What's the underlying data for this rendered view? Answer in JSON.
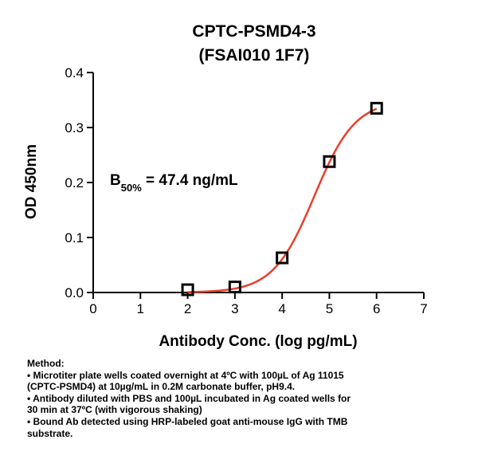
{
  "chart_data": {
    "type": "scatter",
    "title": [
      "CPTC-PSMD4-3",
      "(FSAI010 1F7)"
    ],
    "xlabel": "Antibody Conc. (log pg/mL)",
    "ylabel": "OD 450nm",
    "xlim": [
      0,
      7
    ],
    "ylim": [
      0,
      0.4
    ],
    "xticks": [
      0,
      1,
      2,
      3,
      4,
      5,
      6,
      7
    ],
    "xtick_labels": [
      "0",
      "1",
      "2",
      "3",
      "4",
      "5",
      "6",
      "7"
    ],
    "yticks": [
      0,
      0.1,
      0.2,
      0.3,
      0.4
    ],
    "ytick_labels": [
      "0.0",
      "0.1",
      "0.2",
      "0.3",
      "0.4"
    ],
    "grid": false,
    "series": [
      {
        "marker": "open-square",
        "x": [
          2,
          3,
          4,
          5,
          6
        ],
        "y": [
          0.005,
          0.01,
          0.063,
          0.238,
          0.335
        ]
      }
    ],
    "fit_curve": {
      "type": "sigmoidal",
      "color": "#e8402a",
      "bottom": 0.0,
      "top": 0.35,
      "log_ec50": 4.68,
      "hill_slope": 1.0
    },
    "annotation": {
      "prefix": "B",
      "subscript": "50%",
      "suffix": " = 47.4 ng/mL"
    }
  },
  "method": {
    "heading": "Method:",
    "lines": [
      "• Microtiter plate wells coated overnight at 4ºC  with 100µL of Ag 11015",
      "(CPTC-PSMD4) at 10µg/mL in 0.2M carbonate buffer, pH9.4.",
      "• Antibody diluted with PBS and 100µL incubated in Ag coated wells for",
      "30 min at 37ºC (with vigorous shaking)",
      "• Bound Ab detected using HRP-labeled goat anti-mouse IgG with TMB",
      "substrate."
    ]
  }
}
